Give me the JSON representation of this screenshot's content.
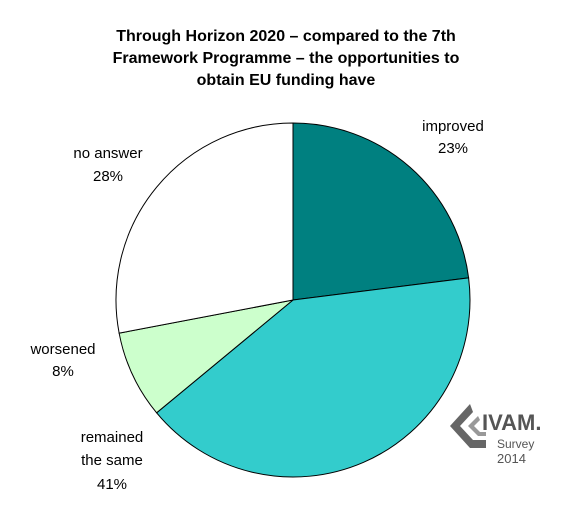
{
  "chart_data": {
    "type": "pie",
    "title_lines": [
      "Through Horizon 2020 – compared to the 7th",
      "Framework Programme – the opportunities to",
      "obtain EU funding have"
    ],
    "slices": [
      {
        "label_lines": [
          "improved"
        ],
        "value": 23,
        "value_text": "23%",
        "color": "#008080"
      },
      {
        "label_lines": [
          "remained",
          "the same"
        ],
        "value": 41,
        "value_text": "41%",
        "color": "#33CCCC"
      },
      {
        "label_lines": [
          "worsened"
        ],
        "value": 8,
        "value_text": "8%",
        "color": "#CCFFCC"
      },
      {
        "label_lines": [
          "no answer"
        ],
        "value": 28,
        "value_text": "28%",
        "color": "#FFFFFF"
      }
    ],
    "start": "12 o'clock",
    "direction": "clockwise"
  },
  "logo": {
    "brand": "IVAM.",
    "line2": "Survey",
    "line3": "2014"
  }
}
